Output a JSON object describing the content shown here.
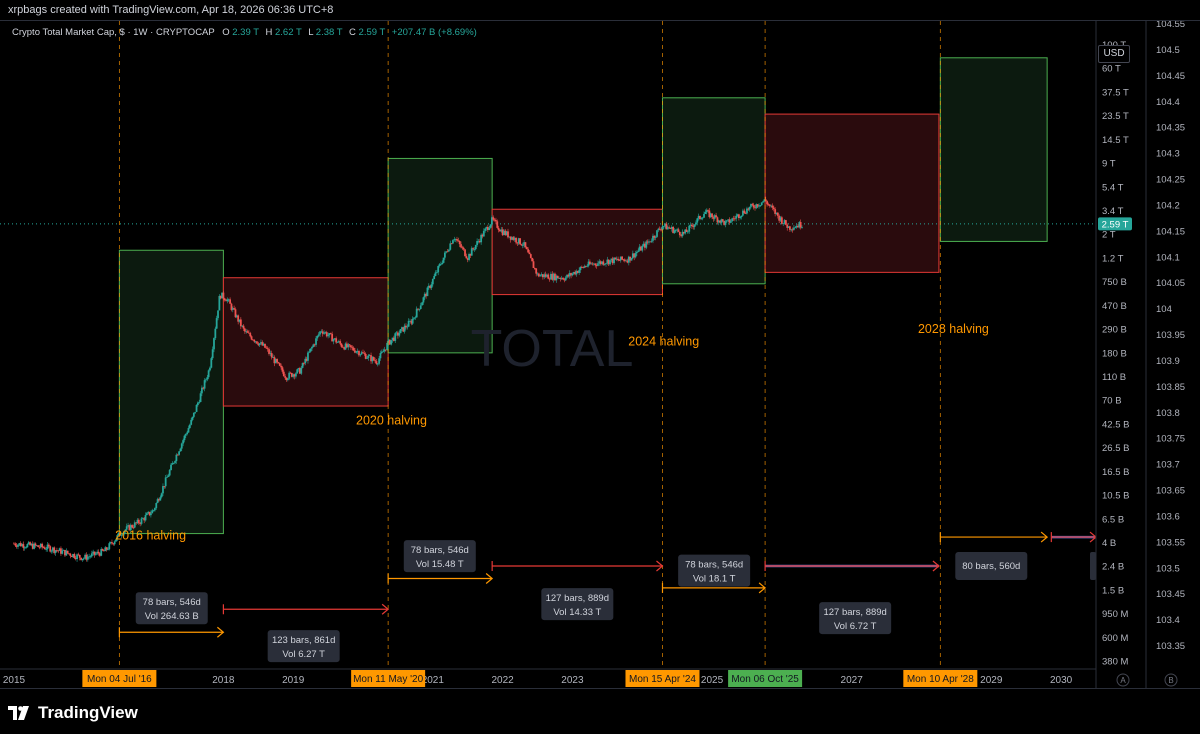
{
  "header": {
    "credit": "xrpbags created with TradingView.com, Apr 18, 2026 06:36 UTC+8"
  },
  "legend": {
    "title": "Crypto Total Market Cap, $ · 1W · CRYPTOCAP",
    "o_label": "O",
    "o_value": "2.39 T",
    "h_label": "H",
    "h_value": "2.62 T",
    "l_label": "L",
    "l_value": "2.38 T",
    "c_label": "C",
    "c_value": "2.59 T",
    "change": "+207.47 B (+8.69%)"
  },
  "currency_button": "USD",
  "watermark": "TOTAL",
  "current_price_label": "2.59 T",
  "footer": {
    "brand": "TradingView"
  },
  "scale_buttons": {
    "a": "A",
    "b": "B"
  },
  "colors": {
    "up": "#26a69a",
    "down": "#ef5350",
    "orange": "#ff9800",
    "green_box_fill": "#0c1a0f",
    "green_box_stroke": "#4caf50",
    "red_box_fill": "#2a0b0d",
    "red_box_stroke": "#e53935"
  },
  "chart_data": {
    "type": "candlestick",
    "log_scale": true,
    "x_axis": {
      "start_year": 2015,
      "end_year": 2030.5
    },
    "y_left_axis_ticks": [
      "100 T",
      "60 T",
      "37.5 T",
      "23.5 T",
      "14.5 T",
      "9 T",
      "5.4 T",
      "3.4 T",
      "2 T",
      "1.2 T",
      "750 B",
      "470 B",
      "290 B",
      "180 B",
      "110 B",
      "70 B",
      "42.5 B",
      "26.5 B",
      "16.5 B",
      "10.5 B",
      "6.5 B",
      "4 B",
      "2.4 B",
      "1.5 B",
      "950 M",
      "600 M",
      "380 M"
    ],
    "y_right_axis_ticks": [
      "104.55",
      "104.5",
      "104.45",
      "104.4",
      "104.35",
      "104.3",
      "104.25",
      "104.2",
      "104.15",
      "104.1",
      "104.05",
      "104",
      "103.95",
      "103.9",
      "103.85",
      "103.8",
      "103.75",
      "103.7",
      "103.65",
      "103.6",
      "103.55",
      "103.5",
      "103.45",
      "103.4",
      "103.35"
    ],
    "x_tick_labels": [
      {
        "label": "2015",
        "year": 2015.0
      },
      {
        "label": "2018",
        "year": 2018.0
      },
      {
        "label": "2019",
        "year": 2019.0
      },
      {
        "label": "2021",
        "year": 2021.0
      },
      {
        "label": "2022",
        "year": 2022.0
      },
      {
        "label": "2023",
        "year": 2023.0
      },
      {
        "label": "2025",
        "year": 2025.0
      },
      {
        "label": "2027",
        "year": 2027.0
      },
      {
        "label": "2029",
        "year": 2029.0
      },
      {
        "label": "2030",
        "year": 2030.0
      }
    ],
    "date_flags": [
      {
        "label": "Mon 04 Jul '16",
        "year": 2016.51,
        "color": "#ff9800"
      },
      {
        "label": "Mon 11 May '20",
        "year": 2020.36,
        "color": "#ff9800"
      },
      {
        "label": "Mon 15 Apr '24",
        "year": 2024.29,
        "color": "#ff9800"
      },
      {
        "label": "Mon 06 Oct '25",
        "year": 2025.76,
        "color": "#4caf50"
      },
      {
        "label": "Mon 10 Apr '28",
        "year": 2028.27,
        "color": "#ff9800"
      }
    ],
    "halving_lines": [
      2016.51,
      2020.36,
      2024.29,
      2025.76,
      2028.27
    ],
    "halving_labels": [
      {
        "text": "2016 halving",
        "year": 2016.45,
        "value": 3800000000.0
      },
      {
        "text": "2020 halving",
        "year": 2019.9,
        "value": 41000000000.0
      },
      {
        "text": "2024 halving",
        "year": 2023.8,
        "value": 210000000000.0
      },
      {
        "text": "2028 halving",
        "year": 2027.95,
        "value": 270000000000.0
      }
    ],
    "boxes": [
      {
        "kind": "green",
        "x0": 2016.51,
        "x1": 2018.0,
        "v_low": 4300000000.0,
        "v_high": 1500000000000.0
      },
      {
        "kind": "red",
        "x0": 2018.0,
        "x1": 2020.36,
        "v_low": 60000000000.0,
        "v_high": 850000000000.0
      },
      {
        "kind": "green",
        "x0": 2020.36,
        "x1": 2021.85,
        "v_low": 180000000000.0,
        "v_high": 10000000000000.0
      },
      {
        "kind": "red",
        "x0": 2021.85,
        "x1": 2024.29,
        "v_low": 600000000000.0,
        "v_high": 3500000000000.0
      },
      {
        "kind": "green",
        "x0": 2024.29,
        "x1": 2025.76,
        "v_low": 750000000000.0,
        "v_high": 35000000000000.0
      },
      {
        "kind": "red",
        "x0": 2025.76,
        "x1": 2028.25,
        "v_low": 950000000000.0,
        "v_high": 25000000000000.0
      },
      {
        "kind": "green",
        "x0": 2028.27,
        "x1": 2029.8,
        "v_low": 1800000000000.0,
        "v_high": 80000000000000.0
      }
    ],
    "candles_anchor": [
      [
        2015.0,
        3500000000.0
      ],
      [
        2015.5,
        3200000000.0
      ],
      [
        2016.0,
        2600000000.0
      ],
      [
        2016.3,
        3000000000.0
      ],
      [
        2016.55,
        4500000000.0
      ],
      [
        2016.8,
        5500000000.0
      ],
      [
        2017.0,
        7000000000.0
      ],
      [
        2017.3,
        20000000000.0
      ],
      [
        2017.55,
        45000000000.0
      ],
      [
        2017.8,
        130000000000.0
      ],
      [
        2017.95,
        600000000000.0
      ],
      [
        2018.05,
        550000000000.0
      ],
      [
        2018.3,
        280000000000.0
      ],
      [
        2018.6,
        200000000000.0
      ],
      [
        2018.9,
        110000000000.0
      ],
      [
        2019.1,
        125000000000.0
      ],
      [
        2019.4,
        290000000000.0
      ],
      [
        2019.7,
        210000000000.0
      ],
      [
        2019.9,
        190000000000.0
      ],
      [
        2020.2,
        150000000000.0
      ],
      [
        2020.36,
        220000000000.0
      ],
      [
        2020.7,
        350000000000.0
      ],
      [
        2020.95,
        700000000000.0
      ],
      [
        2021.3,
        2000000000000.0
      ],
      [
        2021.5,
        1300000000000.0
      ],
      [
        2021.85,
        2800000000000.0
      ],
      [
        2022.0,
        2200000000000.0
      ],
      [
        2022.3,
        1700000000000.0
      ],
      [
        2022.5,
        900000000000.0
      ],
      [
        2022.9,
        850000000000.0
      ],
      [
        2023.2,
        1100000000000.0
      ],
      [
        2023.5,
        1200000000000.0
      ],
      [
        2023.8,
        1250000000000.0
      ],
      [
        2024.1,
        1800000000000.0
      ],
      [
        2024.29,
        2500000000000.0
      ],
      [
        2024.6,
        2100000000000.0
      ],
      [
        2024.9,
        3300000000000.0
      ],
      [
        2025.2,
        2600000000000.0
      ],
      [
        2025.5,
        3500000000000.0
      ],
      [
        2025.76,
        4200000000000.0
      ],
      [
        2025.95,
        3000000000000.0
      ],
      [
        2026.1,
        2400000000000.0
      ],
      [
        2026.3,
        2590000000000.0
      ]
    ],
    "annotations": [
      {
        "kind": "label",
        "line1": "78 bars, 546d",
        "line2": "Vol 264.63 B",
        "year": 2017.26,
        "value": 920000000.0
      },
      {
        "kind": "label",
        "line1": "123 bars, 861d",
        "line2": "Vol 6.27 T",
        "year": 2019.15,
        "value": 420000000.0
      },
      {
        "kind": "label",
        "line1": "78 bars, 546d",
        "line2": "Vol 15.48 T",
        "year": 2021.1,
        "value": 2700000000.0
      },
      {
        "kind": "label",
        "line1": "127 bars, 889d",
        "line2": "Vol 14.33 T",
        "year": 2023.07,
        "value": 1000000000.0
      },
      {
        "kind": "label",
        "line1": "78 bars, 546d",
        "line2": "Vol 18.1 T",
        "year": 2025.03,
        "value": 2000000000.0
      },
      {
        "kind": "label",
        "line1": "127 bars, 889d",
        "line2": "Vol 6.72 T",
        "year": 2027.05,
        "value": 750000000.0
      },
      {
        "kind": "label",
        "line1": "80 bars, 560d",
        "line2": "",
        "year": 2029.0,
        "value": 2200000000.0
      }
    ]
  }
}
